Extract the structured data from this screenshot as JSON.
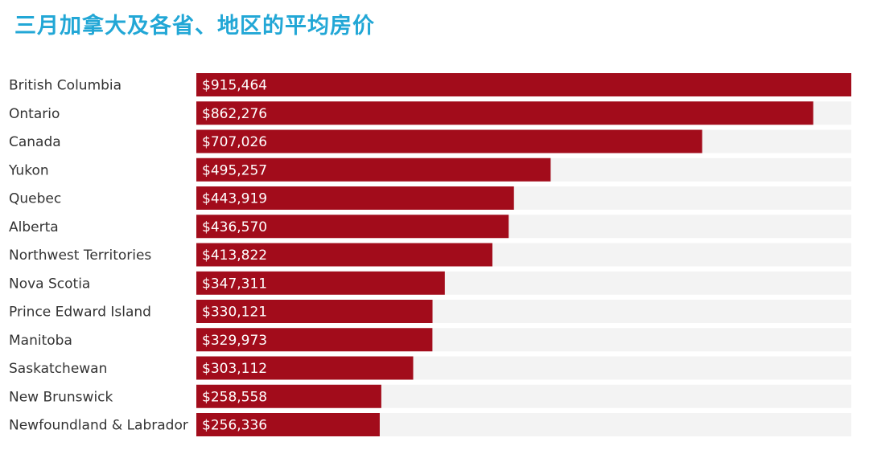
{
  "header": {
    "title": "三月加拿大及各省、地区的平均房价"
  },
  "colors": {
    "bar": "#a20c1b",
    "track": "#f3f3f3",
    "title": "#22a7d6",
    "label": "#333333"
  },
  "chart_data": {
    "type": "bar",
    "orientation": "horizontal",
    "title": "三月加拿大及各省、地区的平均房价",
    "categories": [
      "British Columbia",
      "Ontario",
      "Canada",
      "Yukon",
      "Quebec",
      "Alberta",
      "Northwest Territories",
      "Nova Scotia",
      "Prince Edward Island",
      "Manitoba",
      "Saskatchewan",
      "New Brunswick",
      "Newfoundland & Labrador"
    ],
    "values": [
      915464,
      862276,
      707026,
      495257,
      443919,
      436570,
      413822,
      347311,
      330121,
      329973,
      303112,
      258558,
      256336
    ],
    "value_labels": [
      "$915,464",
      "$862,276",
      "$707,026",
      "$495,257",
      "$443,919",
      "$436,570",
      "$413,822",
      "$347,311",
      "$330,121",
      "$329,973",
      "$303,112",
      "$258,558",
      "$256,336"
    ],
    "xlim": [
      0,
      915464
    ],
    "grid": false,
    "legend": "none"
  }
}
